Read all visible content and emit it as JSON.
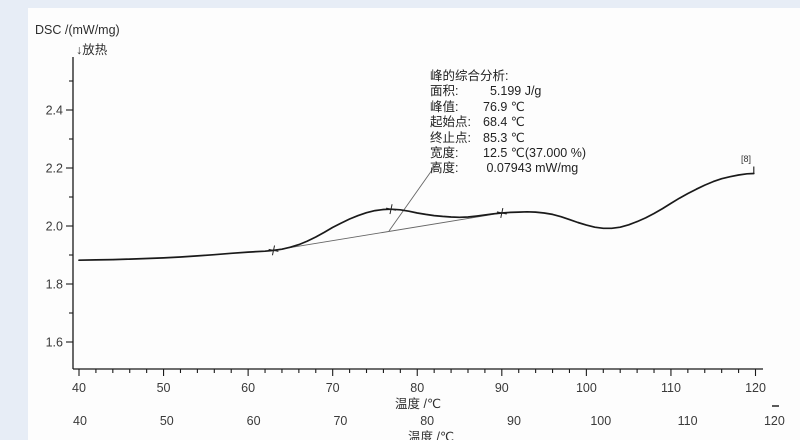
{
  "window": {
    "bg": "#e7edf6",
    "panel_bg": "#fdfdfd",
    "line_color": "#1a1a1a",
    "helper_line_color": "#666666",
    "tick_label_color": "#3a3a3a"
  },
  "y_axis": {
    "title": "DSC /(mW/mg)",
    "subtitle": "↓放热"
  },
  "x_axis": {
    "title": "温度 /℃"
  },
  "x_axis_duplicate": {
    "title": "温度 /℃"
  },
  "curve_tag": "[8]",
  "annotation": {
    "title": "峰的综合分析:",
    "rows": [
      {
        "label": "面积:",
        "value": "  5.199 J/g"
      },
      {
        "label": "峰值:",
        "value": "76.9 ℃"
      },
      {
        "label": "起始点:",
        "value": "68.4 ℃"
      },
      {
        "label": "终止点:",
        "value": "85.3 ℃"
      },
      {
        "label": "宽度:",
        "value": "12.5 ℃(37.000 %)"
      },
      {
        "label": "高度:",
        "value": " 0.07943 mW/mg"
      }
    ]
  },
  "chart_data": {
    "type": "line",
    "title": "",
    "xlabel": "温度 /℃",
    "ylabel": "DSC /(mW/mg)",
    "xlim": [
      40,
      120
    ],
    "ylim": [
      1.51,
      2.58
    ],
    "x_ticks": [
      40,
      50,
      60,
      70,
      80,
      90,
      100,
      110,
      120
    ],
    "x_minor_step": 2,
    "y_ticks": [
      1.6,
      1.8,
      2.0,
      2.2,
      2.4
    ],
    "y_minor_step": 0.1,
    "grid": false,
    "legend": "none",
    "series": [
      {
        "name": "DSC [8]",
        "x": [
          40,
          42,
          44,
          46,
          48,
          50,
          52,
          54,
          56,
          58,
          60,
          62,
          63,
          64,
          65,
          66,
          67,
          68,
          69,
          70,
          71,
          72,
          73,
          74,
          75,
          76,
          76.9,
          78,
          79,
          80,
          81,
          82,
          83,
          84,
          85,
          86,
          87,
          88,
          89,
          90,
          91,
          92,
          93,
          94,
          95,
          96,
          97,
          98,
          99,
          100,
          101,
          102,
          103,
          104,
          105,
          106,
          107,
          108,
          109,
          110,
          111,
          112,
          113,
          114,
          115,
          116,
          117,
          118,
          119,
          119.8
        ],
        "y": [
          1.882,
          1.883,
          1.884,
          1.886,
          1.888,
          1.89,
          1.893,
          1.897,
          1.901,
          1.906,
          1.91,
          1.913,
          1.916,
          1.92,
          1.927,
          1.936,
          1.948,
          1.962,
          1.978,
          1.995,
          2.01,
          2.024,
          2.036,
          2.046,
          2.053,
          2.057,
          2.058,
          2.056,
          2.051,
          2.045,
          2.04,
          2.036,
          2.033,
          2.031,
          2.03,
          2.031,
          2.034,
          2.038,
          2.042,
          2.045,
          2.047,
          2.048,
          2.049,
          2.048,
          2.045,
          2.04,
          2.032,
          2.022,
          2.012,
          2.003,
          1.996,
          1.992,
          1.992,
          1.996,
          2.004,
          2.015,
          2.028,
          2.043,
          2.06,
          2.078,
          2.096,
          2.112,
          2.127,
          2.141,
          2.153,
          2.163,
          2.17,
          2.176,
          2.18,
          2.181
        ]
      }
    ],
    "baseline": {
      "x": [
        63,
        90
      ],
      "y": [
        1.916,
        2.045
      ]
    },
    "markers": [
      {
        "x": 63,
        "y": 1.916
      },
      {
        "x": 76.9,
        "y": 2.058
      },
      {
        "x": 90,
        "y": 2.045
      }
    ],
    "peak_analysis": {
      "area_J_per_g": 5.199,
      "peak_C": 76.9,
      "onset_C": 68.4,
      "end_C": 85.3,
      "width_C": 12.5,
      "width_percent": 37.0,
      "height_mW_per_mg": 0.07943
    }
  }
}
